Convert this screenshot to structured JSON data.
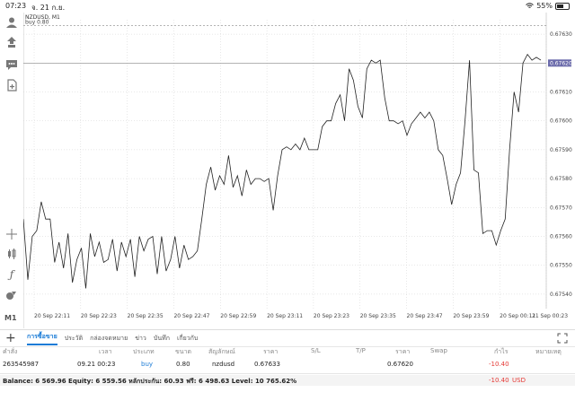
{
  "status_bar": {
    "time": "07:23",
    "date": "จ. 21 ก.ย.",
    "battery": "55%",
    "battery_level": 0.55
  },
  "chart": {
    "symbol": "NZDUSD, M1",
    "order_line_label": "buy 0.80",
    "current_price_label": "0.67620",
    "line_color": "#222222",
    "price_tag_color": "#6a6aaa"
  },
  "toolbar": {
    "timeframe": "M1"
  },
  "chart_data": {
    "type": "line",
    "y_ticks": [
      "0.67630",
      "0.67620",
      "0.67610",
      "0.67600",
      "0.67590",
      "0.67580",
      "0.67570",
      "0.67560",
      "0.67550",
      "0.67540"
    ],
    "x_ticks": [
      "20 Sep 22:11",
      "20 Sep 22:23",
      "20 Sep 22:35",
      "20 Sep 22:47",
      "20 Sep 22:59",
      "20 Sep 23:11",
      "20 Sep 23:23",
      "20 Sep 23:35",
      "20 Sep 23:47",
      "20 Sep 23:59",
      "20 Sep 00:11",
      "21 Sep 00:23"
    ],
    "ylim": [
      0.67535,
      0.67635
    ],
    "order_price": 0.67633,
    "current_price": 0.6762,
    "values": [
      0.67566,
      0.67545,
      0.6756,
      0.67562,
      0.67572,
      0.67566,
      0.67566,
      0.67551,
      0.67558,
      0.67549,
      0.67561,
      0.67544,
      0.67552,
      0.67556,
      0.67542,
      0.67561,
      0.67553,
      0.67558,
      0.67551,
      0.67552,
      0.67559,
      0.67548,
      0.67558,
      0.67553,
      0.67559,
      0.67546,
      0.6756,
      0.67555,
      0.67559,
      0.6756,
      0.67547,
      0.6756,
      0.67548,
      0.67552,
      0.6756,
      0.67549,
      0.67557,
      0.67552,
      0.67553,
      0.67555,
      0.67566,
      0.67578,
      0.67584,
      0.67576,
      0.67581,
      0.67578,
      0.67588,
      0.67577,
      0.67581,
      0.67574,
      0.67583,
      0.67578,
      0.6758,
      0.6758,
      0.67579,
      0.6758,
      0.67569,
      0.67581,
      0.6759,
      0.67591,
      0.6759,
      0.67592,
      0.6759,
      0.67594,
      0.6759,
      0.6759,
      0.6759,
      0.67598,
      0.676,
      0.676,
      0.67606,
      0.67609,
      0.676,
      0.67618,
      0.67614,
      0.67605,
      0.67601,
      0.67618,
      0.67621,
      0.6762,
      0.67621,
      0.67608,
      0.676,
      0.676,
      0.67599,
      0.676,
      0.67595,
      0.67599,
      0.67601,
      0.67603,
      0.67601,
      0.67603,
      0.676,
      0.6759,
      0.67588,
      0.6758,
      0.67571,
      0.67578,
      0.67582,
      0.676,
      0.67621,
      0.67583,
      0.67582,
      0.67561,
      0.67562,
      0.67562,
      0.67557,
      0.67562,
      0.67566,
      0.6759,
      0.6761,
      0.67603,
      0.6762,
      0.67623,
      0.67621,
      0.67622,
      0.67621
    ]
  },
  "tabs": [
    {
      "label": "การซื้อขาย",
      "active": true
    },
    {
      "label": "ประวัติ",
      "active": false
    },
    {
      "label": "กล่องจดหมาย",
      "active": false
    },
    {
      "label": "ข่าว",
      "active": false
    },
    {
      "label": "บันทึก",
      "active": false
    },
    {
      "label": "เกี่ยวกับ",
      "active": false
    }
  ],
  "table": {
    "headers": {
      "order": "คำสั่ง",
      "time": "เวลา",
      "type": "ประเภท",
      "volume": "ขนาด",
      "symbol": "สัญลักษณ์",
      "price": "ราคา",
      "sl": "S/L",
      "tp": "T/P",
      "price2": "ราคา",
      "swap": "Swap",
      "profit": "กำไร",
      "comment": "หมายเหตุ"
    },
    "row": {
      "order": "263545987",
      "time": "09.21 00:23",
      "type": "buy",
      "volume": "0.80",
      "symbol": "nzdusd",
      "price": "0.67633",
      "sl": "",
      "tp": "",
      "price2": "0.67620",
      "swap": "",
      "profit": "-10.40",
      "comment": ""
    }
  },
  "footer": {
    "balance_text": "Balance: 6 569.96 Equity: 6 559.56 หลักประกัน: 60.93 ฟรี: 6 498.63 Level: 10 765.62%",
    "total_profit": "-10.40",
    "currency": "USD"
  }
}
